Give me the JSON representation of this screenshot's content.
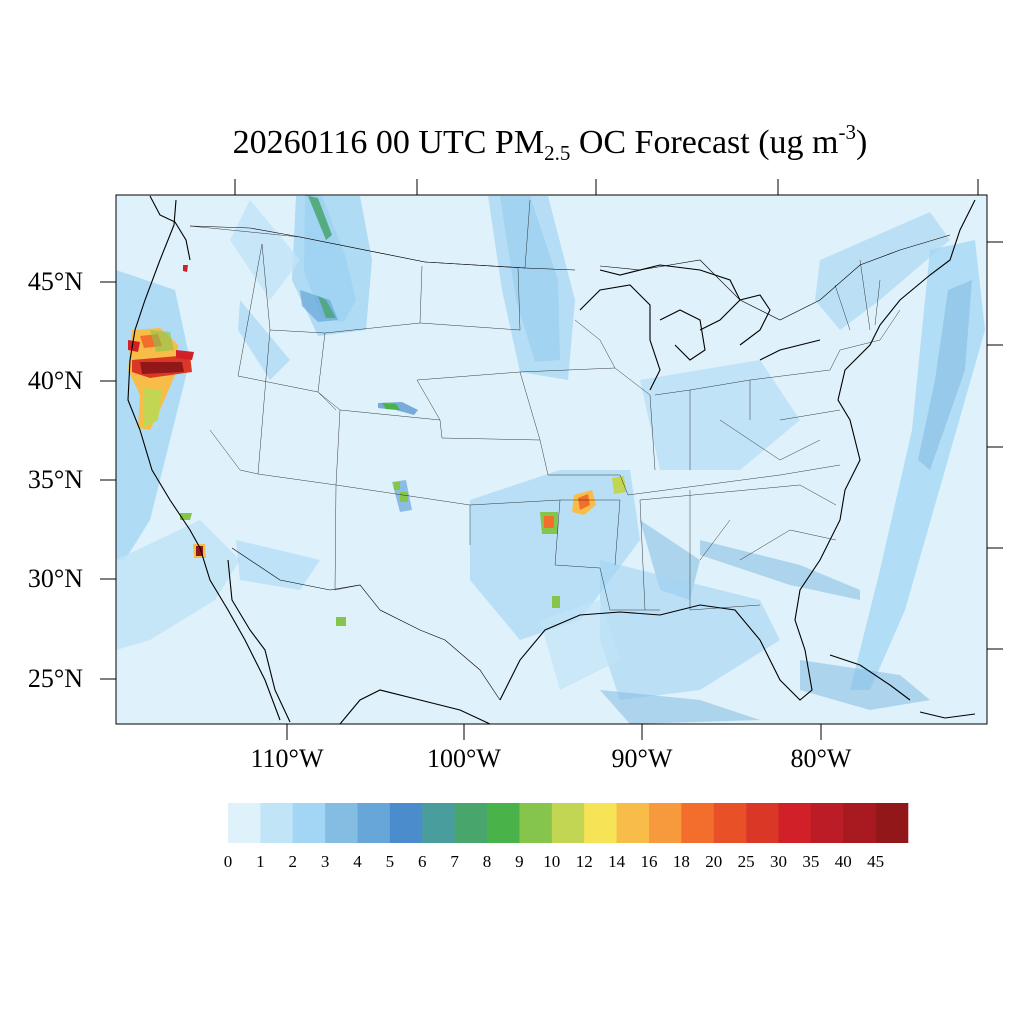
{
  "title": {
    "pre": "20260116 00 UTC PM",
    "sub": "2.5",
    "mid": " OC Forecast (ug m",
    "sup": "-3",
    "post": ")"
  },
  "map": {
    "projection": "lambert-conformal",
    "region": "contiguous United States",
    "background_color": "#dff1fa",
    "lat_labels": [
      {
        "text": "45°N",
        "lat": 45
      },
      {
        "text": "40°N",
        "lat": 40
      },
      {
        "text": "35°N",
        "lat": 35
      },
      {
        "text": "30°N",
        "lat": 30
      },
      {
        "text": "25°N",
        "lat": 25
      }
    ],
    "lon_labels": [
      {
        "text": "110°W",
        "lon": -110
      },
      {
        "text": "100°W",
        "lon": -100
      },
      {
        "text": "90°W",
        "lon": -90
      },
      {
        "text": "80°W",
        "lon": -80
      }
    ]
  },
  "colorbar": {
    "ticks": [
      "0",
      "1",
      "2",
      "3",
      "4",
      "5",
      "6",
      "7",
      "8",
      "9",
      "10",
      "12",
      "14",
      "16",
      "18",
      "20",
      "25",
      "30",
      "35",
      "40",
      "45"
    ],
    "colors": [
      "#dff1fa",
      "#c1e4f6",
      "#a3d6f4",
      "#84bce2",
      "#67a6d8",
      "#4b8ccc",
      "#4a9d9d",
      "#48a56c",
      "#49b249",
      "#85c54c",
      "#c3d654",
      "#f6e356",
      "#f8bd49",
      "#f79a3d",
      "#f36e2d",
      "#e85128",
      "#db3726",
      "#d12028",
      "#bc1c25",
      "#a81a20",
      "#911719"
    ]
  }
}
